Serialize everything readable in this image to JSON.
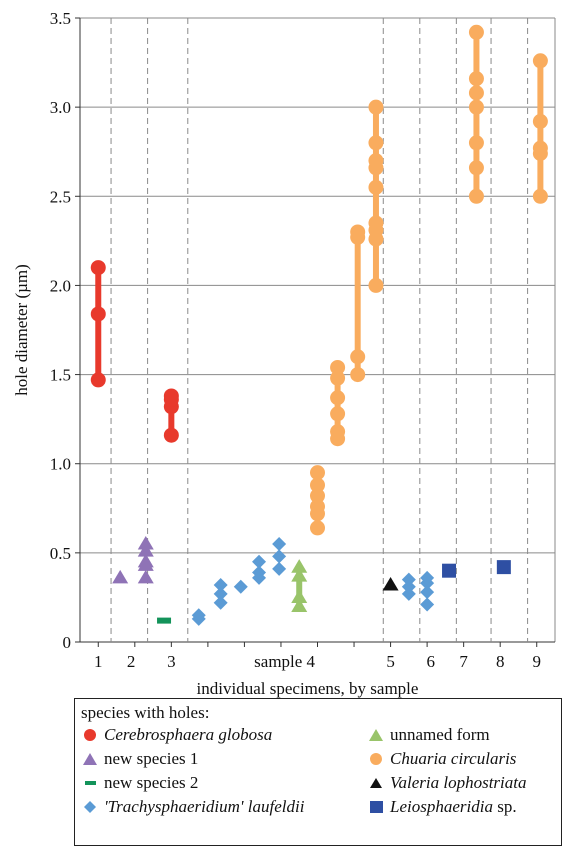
{
  "chart_data": {
    "type": "scatter",
    "ylabel": "hole diameter (µm)",
    "xlabel": "individual specimens, by sample",
    "ylim": [
      0,
      3.5
    ],
    "yticks": [
      "0",
      "0.5",
      "1.0",
      "1.5",
      "2.0",
      "2.5",
      "3.0",
      "3.5"
    ],
    "xtick_labels": [
      {
        "label": "1",
        "x": 1
      },
      {
        "label": "2",
        "x": 1.9
      },
      {
        "label": "3",
        "x": 3
      },
      {
        "label": "sample 4",
        "x": 6.1
      },
      {
        "label": "5",
        "x": 9
      },
      {
        "label": "6",
        "x": 10.1
      },
      {
        "label": "7",
        "x": 11
      },
      {
        "label": "8",
        "x": 12
      },
      {
        "label": "9",
        "x": 13
      }
    ],
    "sample_dividers": [
      1.35,
      2.35,
      3.45,
      8.8,
      9.8,
      10.8,
      11.75,
      12.75
    ],
    "legend_title": "species with holes:",
    "series": [
      {
        "name": "Cerebrosphaera globosa",
        "marker": "circle",
        "color": "#e8392c",
        "connected": true,
        "specimens": [
          {
            "x": 1,
            "y": [
              1.47,
              1.84,
              2.1
            ]
          },
          {
            "x": 3,
            "y": [
              1.16,
              1.32,
              1.36,
              1.38
            ]
          }
        ]
      },
      {
        "name": "new species 1",
        "marker": "triangle",
        "color": "#8f73b6",
        "connected": false,
        "specimens": [
          {
            "x": 1.6,
            "y": [
              0.36
            ]
          },
          {
            "x": 2.3,
            "y": [
              0.36,
              0.43,
              0.45,
              0.51,
              0.55
            ]
          }
        ]
      },
      {
        "name": "new species 2",
        "marker": "dash",
        "color": "#13935a",
        "connected": false,
        "specimens": [
          {
            "x": 2.8,
            "y": [
              0.12
            ]
          }
        ]
      },
      {
        "name": "'Trachysphaeridium' laufeldii",
        "marker": "diamond",
        "color": "#5b9bd5",
        "connected": false,
        "specimens": [
          {
            "x": 3.75,
            "y": [
              0.13,
              0.15
            ]
          },
          {
            "x": 4.35,
            "y": [
              0.22,
              0.27,
              0.32
            ]
          },
          {
            "x": 4.9,
            "y": [
              0.31
            ]
          },
          {
            "x": 5.4,
            "y": [
              0.36,
              0.39,
              0.45
            ]
          },
          {
            "x": 5.95,
            "y": [
              0.41,
              0.48,
              0.55
            ]
          },
          {
            "x": 9.5,
            "y": [
              0.27,
              0.31,
              0.35
            ]
          },
          {
            "x": 10,
            "y": [
              0.21,
              0.28,
              0.33,
              0.36
            ]
          }
        ]
      },
      {
        "name": "unnamed form",
        "marker": "triangle",
        "color": "#99c46a",
        "connected": true,
        "specimens": [
          {
            "x": 6.5,
            "y": [
              0.2,
              0.25,
              0.37,
              0.42
            ]
          }
        ]
      },
      {
        "name": "Chuaria circularis",
        "marker": "circle",
        "color": "#f9ac5e",
        "connected": true,
        "specimens": [
          {
            "x": 7,
            "y": [
              0.64,
              0.72,
              0.76,
              0.82,
              0.88,
              0.95
            ]
          },
          {
            "x": 7.55,
            "y": [
              1.14,
              1.18,
              1.28,
              1.37,
              1.48,
              1.54
            ]
          },
          {
            "x": 8.1,
            "y": [
              1.5,
              1.6,
              2.27,
              2.3
            ]
          },
          {
            "x": 8.6,
            "y": [
              2.0,
              2.26,
              2.31,
              2.35,
              2.55,
              2.66,
              2.7,
              2.8,
              3.0
            ]
          },
          {
            "x": 11.35,
            "y": [
              2.5,
              2.66,
              2.8,
              3.0,
              3.08,
              3.16,
              3.42
            ]
          },
          {
            "x": 13.1,
            "y": [
              2.5,
              2.74,
              2.77,
              2.92,
              3.26
            ]
          }
        ]
      },
      {
        "name": "Valeria lophostriata",
        "marker": "triangle",
        "color": "#111111",
        "connected": false,
        "specimens": [
          {
            "x": 9,
            "y": [
              0.32
            ]
          }
        ]
      },
      {
        "name": "Leiosphaeridia sp.",
        "marker": "square",
        "color": "#2e4fa3",
        "connected": false,
        "specimens": [
          {
            "x": 10.6,
            "y": [
              0.4
            ]
          },
          {
            "x": 12.1,
            "y": [
              0.42
            ]
          }
        ]
      }
    ]
  },
  "legend": {
    "title": "species with holes:",
    "items": [
      {
        "label": "Cerebrosphaera globosa",
        "italic": true,
        "icon": "circle-icon",
        "color": "#e8392c"
      },
      {
        "label": "unnamed form",
        "italic": false,
        "icon": "triangle-icon",
        "color": "#99c46a"
      },
      {
        "label": "new species 1",
        "italic": false,
        "icon": "triangle-icon",
        "color": "#8f73b6"
      },
      {
        "label": "Chuaria circularis",
        "italic": true,
        "icon": "circle-icon",
        "color": "#f9ac5e"
      },
      {
        "label": "new species 2",
        "italic": false,
        "icon": "dash-icon",
        "color": "#13935a"
      },
      {
        "label": "Valeria lophostriata",
        "italic": true,
        "icon": "triangle-icon",
        "color": "#111111"
      },
      {
        "label_quoted": "'Trachysphaeridium'",
        "label_rest": " laufeldii",
        "icon": "diamond-icon",
        "color": "#5b9bd5"
      },
      {
        "label_italic": "Leiosphaeridia",
        "label_rest": " sp.",
        "icon": "square-icon",
        "color": "#2e4fa3"
      }
    ]
  }
}
